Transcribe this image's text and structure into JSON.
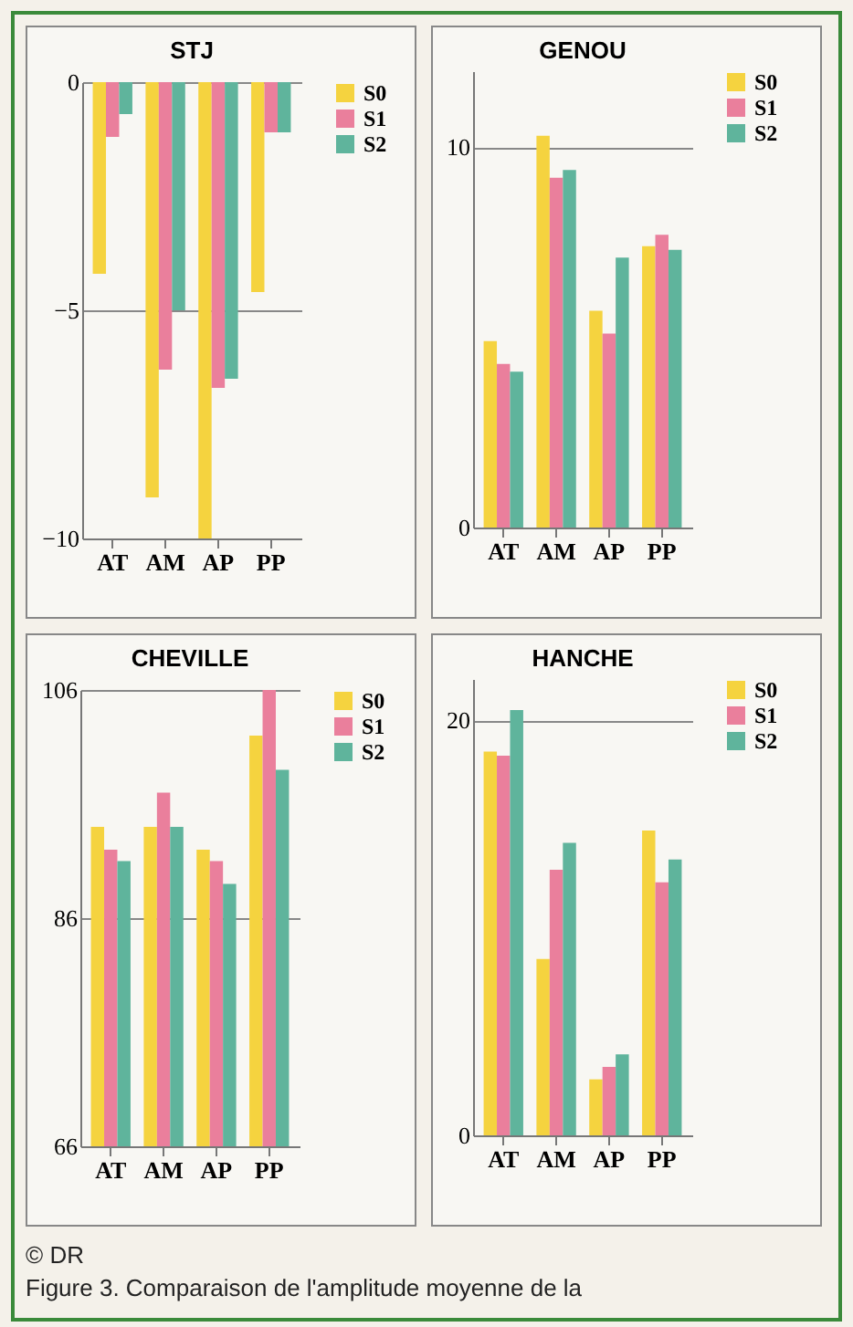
{
  "chart_data": [
    {
      "type": "bar",
      "title": "STJ",
      "categories": [
        "AT",
        "AM",
        "AP",
        "PP"
      ],
      "ylim": [
        -10,
        0
      ],
      "yticks": [
        0,
        -5,
        -10
      ],
      "grid": "y",
      "legend": "right",
      "annotations": [
        "© DR",
        "Figure 3. Comparaison de l'amplitude moyenne de la"
      ],
      "series": [
        {
          "name": "S0",
          "color": "#f5d33f",
          "values": [
            -4.2,
            -9.1,
            -10,
            -4.6
          ]
        },
        {
          "name": "S1",
          "color": "#ea7f9c",
          "values": [
            -1.2,
            -6.3,
            -6.7,
            -1.1
          ]
        },
        {
          "name": "S2",
          "color": "#5fb49c",
          "values": [
            -0.7,
            -5.0,
            -6.5,
            -1.1
          ]
        }
      ]
    },
    {
      "type": "bar",
      "title": "GENOU",
      "categories": [
        "AT",
        "AM",
        "AP",
        "PP"
      ],
      "ylim": [
        0,
        12
      ],
      "yticks": [
        0,
        10
      ],
      "grid": "y",
      "legend": "right",
      "series": [
        {
          "name": "S0",
          "color": "#f5d33f",
          "values": [
            4.9,
            10.3,
            5.7,
            7.4
          ]
        },
        {
          "name": "S1",
          "color": "#ea7f9c",
          "values": [
            4.3,
            9.2,
            5.1,
            7.7
          ]
        },
        {
          "name": "S2",
          "color": "#5fb49c",
          "values": [
            4.1,
            9.4,
            7.1,
            7.3
          ]
        }
      ]
    },
    {
      "type": "bar",
      "title": "CHEVILLE",
      "categories": [
        "AT",
        "AM",
        "AP",
        "PP"
      ],
      "ylim": [
        66,
        106
      ],
      "yticks": [
        66,
        86,
        106
      ],
      "grid": "y",
      "legend": "right",
      "series": [
        {
          "name": "S0",
          "color": "#f5d33f",
          "values": [
            94,
            94,
            92,
            102
          ]
        },
        {
          "name": "S1",
          "color": "#ea7f9c",
          "values": [
            92,
            97,
            91,
            106
          ]
        },
        {
          "name": "S2",
          "color": "#5fb49c",
          "values": [
            91,
            94,
            89,
            99
          ]
        }
      ]
    },
    {
      "type": "bar",
      "title": "HANCHE",
      "categories": [
        "AT",
        "AM",
        "AP",
        "PP"
      ],
      "ylim": [
        0,
        22
      ],
      "yticks": [
        0,
        20
      ],
      "grid": "y",
      "legend": "right",
      "series": [
        {
          "name": "S0",
          "color": "#f5d33f",
          "values": [
            18.5,
            8.5,
            2.7,
            14.7
          ]
        },
        {
          "name": "S1",
          "color": "#ea7f9c",
          "values": [
            18.3,
            12.8,
            3.3,
            12.2
          ]
        },
        {
          "name": "S2",
          "color": "#5fb49c",
          "values": [
            20.5,
            14.1,
            3.9,
            13.3
          ]
        }
      ]
    }
  ]
}
